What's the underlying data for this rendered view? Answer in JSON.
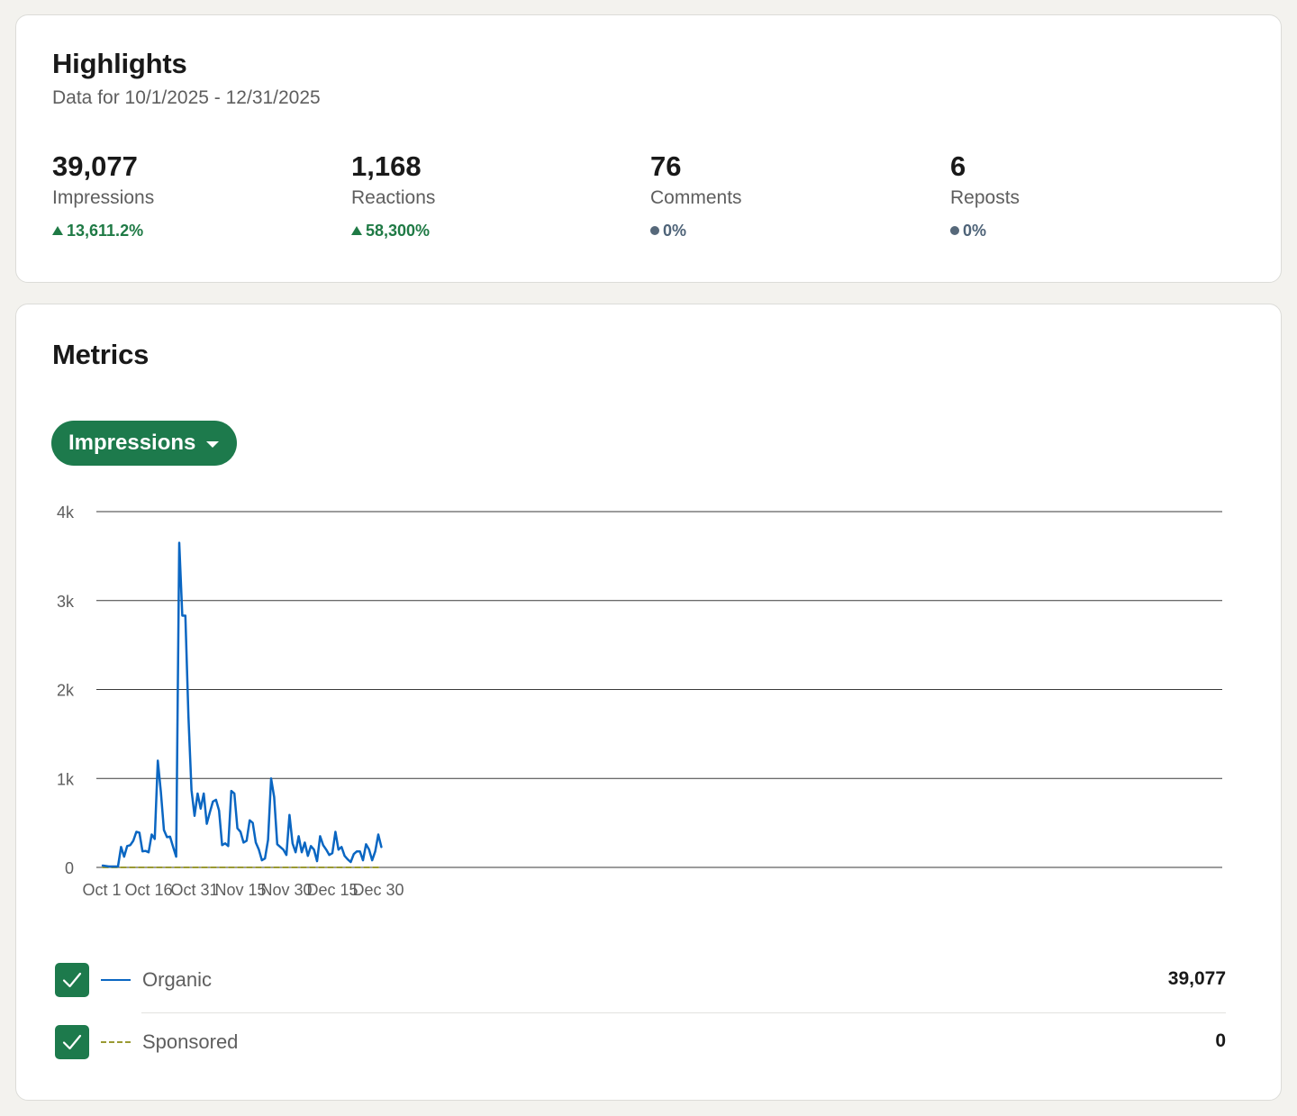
{
  "highlights": {
    "title": "Highlights",
    "subtitle": "Data for 10/1/2025 - 12/31/2025",
    "stats": [
      {
        "value": "39,077",
        "label": "Impressions",
        "change": "13,611.2%",
        "trend": "up"
      },
      {
        "value": "1,168",
        "label": "Reactions",
        "change": "58,300%",
        "trend": "up"
      },
      {
        "value": "76",
        "label": "Comments",
        "change": "0%",
        "trend": "flat"
      },
      {
        "value": "6",
        "label": "Reposts",
        "change": "0%",
        "trend": "flat"
      }
    ]
  },
  "metrics": {
    "title": "Metrics",
    "dropdown_label": "Impressions",
    "legend": [
      {
        "name": "Organic",
        "total": "39,077",
        "checked": true,
        "color": "#0a66c2",
        "style": "solid"
      },
      {
        "name": "Sponsored",
        "total": "0",
        "checked": true,
        "color": "#9a9a33",
        "style": "dashed"
      }
    ]
  },
  "colors": {
    "accent_green": "#1d7a4c",
    "positive_change": "#1f7a45",
    "neutral_change": "#4e6378",
    "organic_line": "#0a66c2",
    "sponsored_line": "#9a9a33"
  },
  "chart_data": {
    "type": "line",
    "ylim": [
      0,
      4000
    ],
    "y_ticks": [
      "0",
      "1k",
      "2k",
      "3k",
      "4k"
    ],
    "x_ticks": [
      "Oct 1",
      "Oct 16",
      "Oct 31",
      "Nov 15",
      "Nov 30",
      "Dec 15",
      "Dec 30"
    ],
    "x_start_label": "Oct 1",
    "grid": true,
    "series": [
      {
        "name": "Organic",
        "values": [
          20,
          15,
          10,
          10,
          10,
          10,
          230,
          120,
          240,
          250,
          300,
          400,
          390,
          180,
          185,
          170,
          370,
          320,
          1200,
          850,
          420,
          340,
          345,
          230,
          120,
          3650,
          2830,
          2830,
          1700,
          870,
          580,
          830,
          660,
          830,
          490,
          620,
          740,
          760,
          640,
          250,
          270,
          240,
          860,
          830,
          440,
          400,
          280,
          300,
          530,
          500,
          280,
          200,
          80,
          100,
          310,
          1000,
          790,
          260,
          230,
          200,
          140,
          590,
          270,
          170,
          350,
          170,
          280,
          130,
          240,
          200,
          70,
          350,
          250,
          200,
          140,
          160,
          400,
          200,
          230,
          130,
          90,
          60,
          150,
          180,
          180,
          80,
          260,
          200,
          80,
          180,
          370,
          230
        ],
        "color": "#0a66c2",
        "style": "solid"
      },
      {
        "name": "Sponsored",
        "values": [
          0,
          0,
          0,
          0,
          0,
          0,
          0,
          0,
          0,
          0,
          0,
          0,
          0,
          0,
          0,
          0,
          0,
          0,
          0,
          0,
          0,
          0,
          0,
          0,
          0,
          0,
          0,
          0,
          0,
          0,
          0,
          0,
          0,
          0,
          0,
          0,
          0,
          0,
          0,
          0,
          0,
          0,
          0,
          0,
          0,
          0,
          0,
          0,
          0,
          0,
          0,
          0,
          0,
          0,
          0,
          0,
          0,
          0,
          0,
          0,
          0,
          0,
          0,
          0,
          0,
          0,
          0,
          0,
          0,
          0,
          0,
          0,
          0,
          0,
          0,
          0,
          0,
          0,
          0,
          0,
          0,
          0,
          0,
          0,
          0,
          0,
          0,
          0,
          0,
          0,
          0,
          0
        ],
        "color": "#9a9a33",
        "style": "dashed"
      }
    ]
  }
}
